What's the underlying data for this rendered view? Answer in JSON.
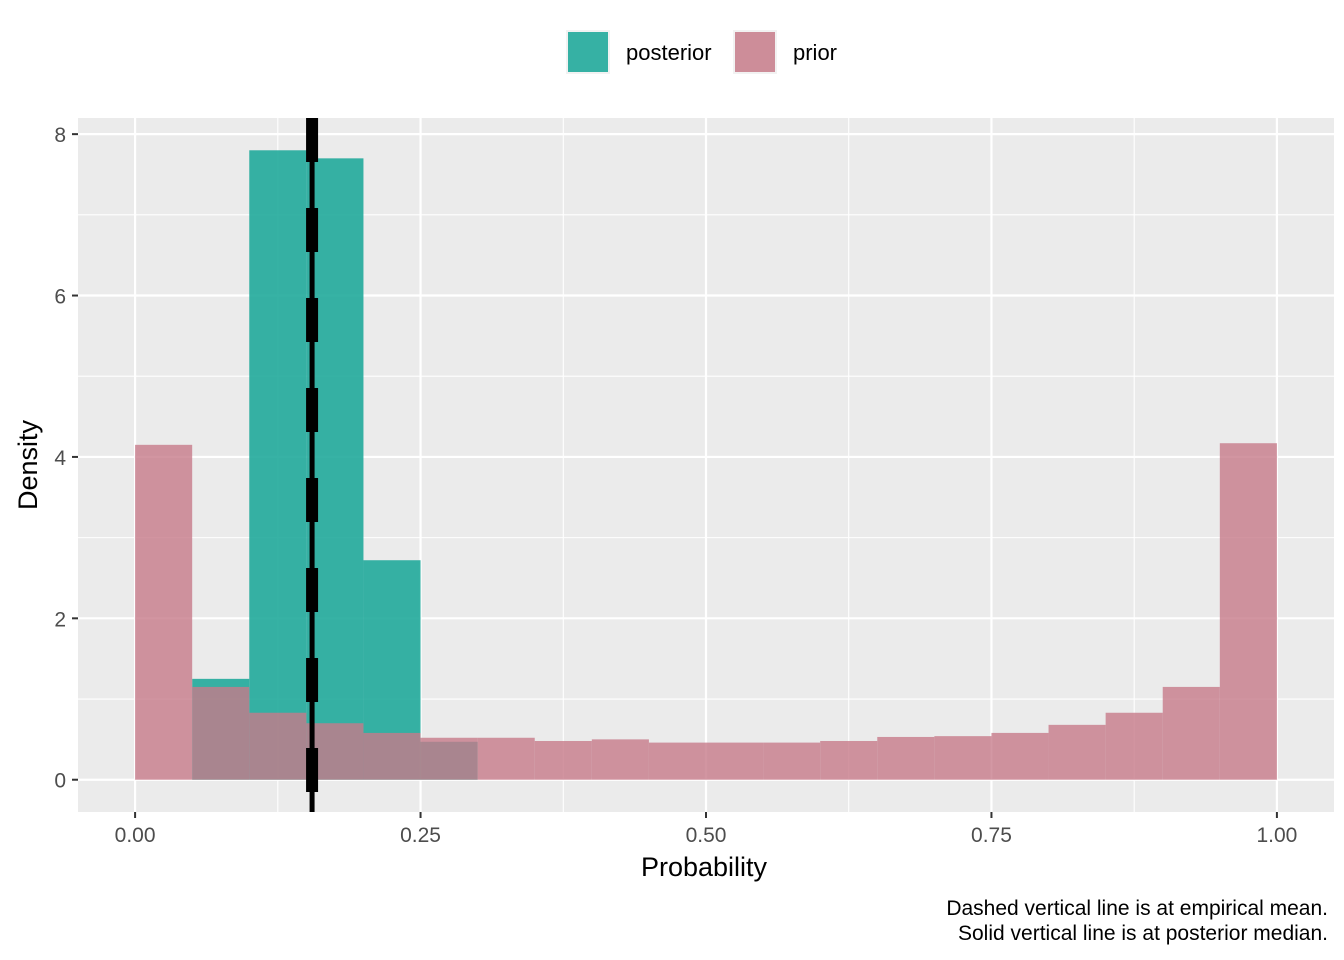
{
  "chart_data": {
    "type": "bar",
    "xlabel": "Probability",
    "ylabel": "Density",
    "xlim": [
      -0.05,
      1.05
    ],
    "ylim": [
      -0.4,
      8.2
    ],
    "x_ticks": [
      0,
      0.25,
      0.5,
      0.75,
      1
    ],
    "x_tick_labels": [
      "0.00",
      "0.25",
      "0.50",
      "0.75",
      "1.00"
    ],
    "y_ticks": [
      0,
      2,
      4,
      6,
      8
    ],
    "y_tick_labels": [
      "0",
      "2",
      "4",
      "6",
      "8"
    ],
    "grid": true,
    "legend_position": "top",
    "bin_width": 0.05,
    "series": [
      {
        "name": "posterior",
        "color": "#21AA9B",
        "bin_starts": [
          0.05,
          0.1,
          0.15,
          0.2,
          0.25
        ],
        "values": [
          1.25,
          7.8,
          7.7,
          2.72,
          0.47
        ]
      },
      {
        "name": "prior",
        "color": "#C77B8A",
        "bin_starts": [
          0.0,
          0.05,
          0.1,
          0.15,
          0.2,
          0.25,
          0.3,
          0.35,
          0.4,
          0.45,
          0.5,
          0.55,
          0.6,
          0.65,
          0.7,
          0.75,
          0.8,
          0.85,
          0.9,
          0.95
        ],
        "values": [
          4.15,
          1.15,
          0.83,
          0.7,
          0.58,
          0.52,
          0.52,
          0.48,
          0.5,
          0.46,
          0.46,
          0.46,
          0.48,
          0.53,
          0.54,
          0.58,
          0.68,
          0.83,
          1.15,
          4.17
        ]
      }
    ],
    "vlines": [
      {
        "name": "empirical-mean",
        "x": 0.155,
        "style": "dashed"
      },
      {
        "name": "posterior-median",
        "x": 0.155,
        "style": "solid"
      }
    ],
    "caption": [
      "Dashed vertical line is at empirical mean.",
      "Solid vertical line is at posterior median."
    ]
  }
}
